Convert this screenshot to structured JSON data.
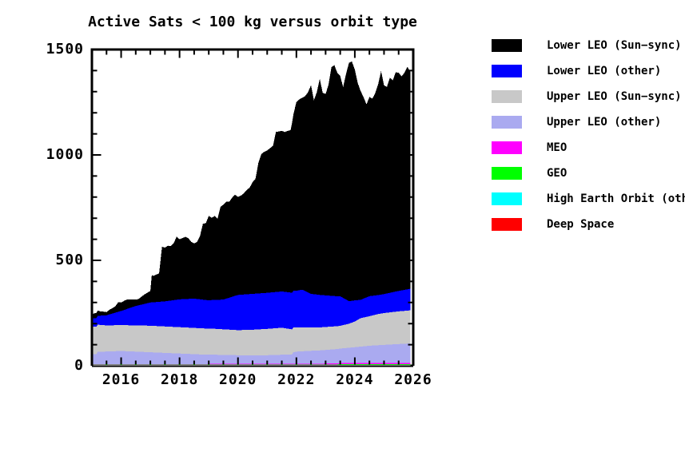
{
  "chart_data": {
    "type": "area",
    "stacked": true,
    "title": "Active Sats < 100 kg versus orbit type",
    "background": "#ffffff",
    "axis_color": "#000000",
    "grid": false,
    "legend_position": "right",
    "x_axis": {
      "min": 2015,
      "max": 2026,
      "tick_values": [
        2016,
        2018,
        2020,
        2022,
        2024,
        2026
      ],
      "tick_labels": [
        "2016",
        "2018",
        "2020",
        "2022",
        "2024",
        "2026"
      ],
      "minor_tick_step": 0.5
    },
    "y_axis": {
      "min": 0,
      "max": 1500,
      "tick_values": [
        0,
        500,
        1000,
        1500
      ],
      "tick_labels": [
        "0",
        "500",
        "1000",
        "1500"
      ],
      "minor_tick_step": 100
    },
    "data_x_end": 2025.9,
    "legend": [
      {
        "label": "Lower LEO (Sun−sync)",
        "color": "#000000"
      },
      {
        "label": "Lower LEO (other)",
        "color": "#0000ff"
      },
      {
        "label": "Upper LEO (Sun−sync)",
        "color": "#c8c8c8"
      },
      {
        "label": "Upper LEO (other)",
        "color": "#aaaaf0"
      },
      {
        "label": "MEO",
        "color": "#ff00ff"
      },
      {
        "label": "GEO",
        "color": "#00ff00"
      },
      {
        "label": "High Earth Orbit (other)",
        "color": "#00ffff"
      },
      {
        "label": "Deep Space",
        "color": "#ff0000"
      }
    ],
    "series": [
      {
        "name": "Deep Space",
        "color": "#ff0000",
        "points": [
          [
            2015.0,
            2
          ],
          [
            2025.9,
            2
          ]
        ]
      },
      {
        "name": "High Earth Orbit (other)",
        "color": "#00ffff",
        "points": [
          [
            2015.0,
            1
          ],
          [
            2023.4,
            1
          ],
          [
            2023.5,
            2
          ],
          [
            2025.9,
            2
          ]
        ]
      },
      {
        "name": "GEO",
        "color": "#00ff00",
        "points": [
          [
            2015.0,
            2
          ],
          [
            2022.9,
            2
          ],
          [
            2023.0,
            3
          ],
          [
            2024.0,
            4
          ],
          [
            2025.9,
            4
          ]
        ]
      },
      {
        "name": "MEO",
        "color": "#ff00ff",
        "points": [
          [
            2015.0,
            3
          ],
          [
            2018.9,
            3
          ],
          [
            2019.0,
            4
          ],
          [
            2021.9,
            4
          ],
          [
            2022.0,
            5
          ],
          [
            2025.9,
            5
          ]
        ]
      },
      {
        "name": "Upper LEO (other)",
        "color": "#aaaaf0",
        "points": [
          [
            2015.0,
            47
          ],
          [
            2015.15,
            47
          ],
          [
            2015.2,
            58
          ],
          [
            2016.0,
            62
          ],
          [
            2017.0,
            56
          ],
          [
            2018.0,
            50
          ],
          [
            2019.0,
            44
          ],
          [
            2020.0,
            41
          ],
          [
            2021.0,
            41
          ],
          [
            2021.85,
            45
          ],
          [
            2021.9,
            55
          ],
          [
            2022.0,
            57
          ],
          [
            2022.5,
            61
          ],
          [
            2023.0,
            64
          ],
          [
            2023.5,
            69
          ],
          [
            2024.0,
            75
          ],
          [
            2024.5,
            82
          ],
          [
            2025.0,
            86
          ],
          [
            2025.5,
            90
          ],
          [
            2025.9,
            93
          ]
        ]
      },
      {
        "name": "Upper LEO (Sun−sync)",
        "color": "#c8c8c8",
        "points": [
          [
            2015.0,
            132
          ],
          [
            2015.5,
            124
          ],
          [
            2016.0,
            123
          ],
          [
            2017.0,
            126
          ],
          [
            2018.0,
            125
          ],
          [
            2019.0,
            124
          ],
          [
            2020.0,
            119
          ],
          [
            2020.5,
            121
          ],
          [
            2021.0,
            125
          ],
          [
            2021.5,
            128
          ],
          [
            2022.0,
            115
          ],
          [
            2022.5,
            111
          ],
          [
            2023.0,
            109
          ],
          [
            2023.5,
            108
          ],
          [
            2023.8,
            114
          ],
          [
            2024.0,
            122
          ],
          [
            2024.2,
            135
          ],
          [
            2024.5,
            140
          ],
          [
            2024.8,
            148
          ],
          [
            2025.0,
            151
          ],
          [
            2025.5,
            155
          ],
          [
            2025.9,
            157
          ]
        ]
      },
      {
        "name": "Lower LEO (other)",
        "color": "#0000ff",
        "points": [
          [
            2015.0,
            38
          ],
          [
            2015.5,
            48
          ],
          [
            2016.0,
            67
          ],
          [
            2016.5,
            92
          ],
          [
            2017.0,
            110
          ],
          [
            2017.5,
            119
          ],
          [
            2018.0,
            132
          ],
          [
            2018.5,
            139
          ],
          [
            2019.0,
            134
          ],
          [
            2019.5,
            141
          ],
          [
            2020.0,
            167
          ],
          [
            2020.5,
            170
          ],
          [
            2021.0,
            171
          ],
          [
            2021.5,
            172
          ],
          [
            2022.0,
            174
          ],
          [
            2022.2,
            179
          ],
          [
            2022.5,
            159
          ],
          [
            2023.0,
            150
          ],
          [
            2023.5,
            140
          ],
          [
            2023.8,
            107
          ],
          [
            2024.0,
            100
          ],
          [
            2024.2,
            87
          ],
          [
            2024.5,
            95
          ],
          [
            2024.8,
            90
          ],
          [
            2025.0,
            90
          ],
          [
            2025.5,
            97
          ],
          [
            2025.9,
            102
          ]
        ]
      },
      {
        "name": "Lower LEO (Sun−sync)",
        "color": "#000000",
        "points": [
          [
            2015.0,
            20
          ],
          [
            2015.1,
            24
          ],
          [
            2015.2,
            25
          ],
          [
            2015.3,
            20
          ],
          [
            2015.4,
            18
          ],
          [
            2015.5,
            15
          ],
          [
            2015.6,
            22
          ],
          [
            2015.7,
            25
          ],
          [
            2015.8,
            30
          ],
          [
            2015.9,
            45
          ],
          [
            2016.0,
            40
          ],
          [
            2016.1,
            43
          ],
          [
            2016.2,
            45
          ],
          [
            2016.3,
            40
          ],
          [
            2016.4,
            35
          ],
          [
            2016.5,
            30
          ],
          [
            2016.6,
            30
          ],
          [
            2016.7,
            38
          ],
          [
            2016.8,
            45
          ],
          [
            2016.9,
            50
          ],
          [
            2017.0,
            55
          ],
          [
            2017.05,
            130
          ],
          [
            2017.1,
            125
          ],
          [
            2017.2,
            130
          ],
          [
            2017.3,
            135
          ],
          [
            2017.4,
            260
          ],
          [
            2017.5,
            255
          ],
          [
            2017.6,
            262
          ],
          [
            2017.7,
            258
          ],
          [
            2017.8,
            270
          ],
          [
            2017.9,
            300
          ],
          [
            2018.0,
            285
          ],
          [
            2018.1,
            290
          ],
          [
            2018.2,
            295
          ],
          [
            2018.3,
            288
          ],
          [
            2018.4,
            270
          ],
          [
            2018.5,
            262
          ],
          [
            2018.6,
            270
          ],
          [
            2018.7,
            300
          ],
          [
            2018.8,
            360
          ],
          [
            2018.9,
            365
          ],
          [
            2019.0,
            400
          ],
          [
            2019.1,
            390
          ],
          [
            2019.2,
            398
          ],
          [
            2019.3,
            385
          ],
          [
            2019.4,
            440
          ],
          [
            2019.5,
            450
          ],
          [
            2019.6,
            460
          ],
          [
            2019.7,
            455
          ],
          [
            2019.8,
            470
          ],
          [
            2019.9,
            480
          ],
          [
            2020.0,
            465
          ],
          [
            2020.1,
            470
          ],
          [
            2020.2,
            480
          ],
          [
            2020.3,
            495
          ],
          [
            2020.4,
            505
          ],
          [
            2020.5,
            530
          ],
          [
            2020.6,
            545
          ],
          [
            2020.7,
            620
          ],
          [
            2020.8,
            660
          ],
          [
            2020.9,
            670
          ],
          [
            2021.0,
            675
          ],
          [
            2021.1,
            685
          ],
          [
            2021.2,
            695
          ],
          [
            2021.3,
            760
          ],
          [
            2021.4,
            760
          ],
          [
            2021.5,
            762
          ],
          [
            2021.6,
            758
          ],
          [
            2021.7,
            765
          ],
          [
            2021.8,
            770
          ],
          [
            2021.9,
            838
          ],
          [
            2022.0,
            895
          ],
          [
            2022.1,
            905
          ],
          [
            2022.2,
            910
          ],
          [
            2022.3,
            925
          ],
          [
            2022.4,
            950
          ],
          [
            2022.5,
            990
          ],
          [
            2022.6,
            920
          ],
          [
            2022.7,
            960
          ],
          [
            2022.8,
            1025
          ],
          [
            2022.9,
            960
          ],
          [
            2023.0,
            955
          ],
          [
            2023.1,
            1000
          ],
          [
            2023.2,
            1085
          ],
          [
            2023.3,
            1095
          ],
          [
            2023.4,
            1060
          ],
          [
            2023.5,
            1045
          ],
          [
            2023.6,
            1000
          ],
          [
            2023.7,
            1070
          ],
          [
            2023.8,
            1130
          ],
          [
            2023.9,
            1135
          ],
          [
            2024.0,
            1095
          ],
          [
            2024.1,
            1030
          ],
          [
            2024.2,
            990
          ],
          [
            2024.3,
            955
          ],
          [
            2024.4,
            915
          ],
          [
            2024.5,
            945
          ],
          [
            2024.6,
            935
          ],
          [
            2024.7,
            960
          ],
          [
            2024.8,
            1000
          ],
          [
            2024.9,
            1060
          ],
          [
            2025.0,
            990
          ],
          [
            2025.1,
            980
          ],
          [
            2025.2,
            1020
          ],
          [
            2025.3,
            1005
          ],
          [
            2025.4,
            1040
          ],
          [
            2025.5,
            1035
          ],
          [
            2025.6,
            1015
          ],
          [
            2025.7,
            1030
          ],
          [
            2025.8,
            1055
          ],
          [
            2025.9,
            1030
          ]
        ]
      }
    ]
  }
}
